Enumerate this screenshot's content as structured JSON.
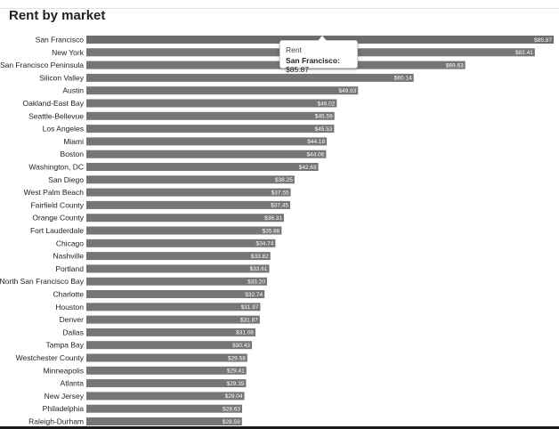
{
  "chart_data": {
    "type": "bar",
    "orientation": "horizontal",
    "title": "Rent by market",
    "xlabel": "",
    "ylabel": "",
    "grid": false,
    "legend": "none",
    "xlim": [
      0,
      85.87
    ],
    "categories": [
      "San Francisco",
      "New York",
      "San Francisco Peninsula",
      "Silicon Valley",
      "Austin",
      "Oakland-East Bay",
      "Seattle-Bellevue",
      "Los Angeles",
      "Miami",
      "Boston",
      "Washington, DC",
      "San Diego",
      "West Palm Beach",
      "Fairfield County",
      "Orange County",
      "Fort Lauderdale",
      "Chicago",
      "Nashville",
      "Portland",
      "North San Francisco Bay",
      "Charlotte",
      "Houston",
      "Denver",
      "Dallas",
      "Tampa Bay",
      "Westchester County",
      "Minneapolis",
      "Atlanta",
      "New Jersey",
      "Philadelphia",
      "Raleigh-Durham"
    ],
    "values": [
      85.87,
      82.41,
      69.63,
      60.14,
      49.93,
      46.02,
      45.59,
      45.53,
      44.18,
      44.06,
      42.63,
      38.25,
      37.55,
      37.45,
      36.31,
      35.88,
      34.74,
      33.82,
      33.61,
      33.2,
      32.74,
      31.97,
      31.87,
      31.08,
      30.43,
      29.58,
      29.41,
      29.35,
      29.04,
      28.63,
      28.59
    ],
    "value_labels": [
      "$85.87",
      "$82.41",
      "$69.63",
      "$60.14",
      "$49.93",
      "$46.02",
      "$45.59",
      "$45.53",
      "$44.18",
      "$44.06",
      "$42.63",
      "$38.25",
      "$37.55",
      "$37.45",
      "$36.31",
      "$35.88",
      "$34.74",
      "$33.82",
      "$33.61",
      "$33.20",
      "$32.74",
      "$31.97",
      "$31.87",
      "$31.08",
      "$30.43",
      "$29.58",
      "$29.41",
      "$29.35",
      "$29.04",
      "$28.63",
      "$28.59"
    ],
    "bar_color": "#767676"
  },
  "tooltip": {
    "series_name": "Rent",
    "category": "San Francisco",
    "separator": ": ",
    "value": "$85.87"
  }
}
